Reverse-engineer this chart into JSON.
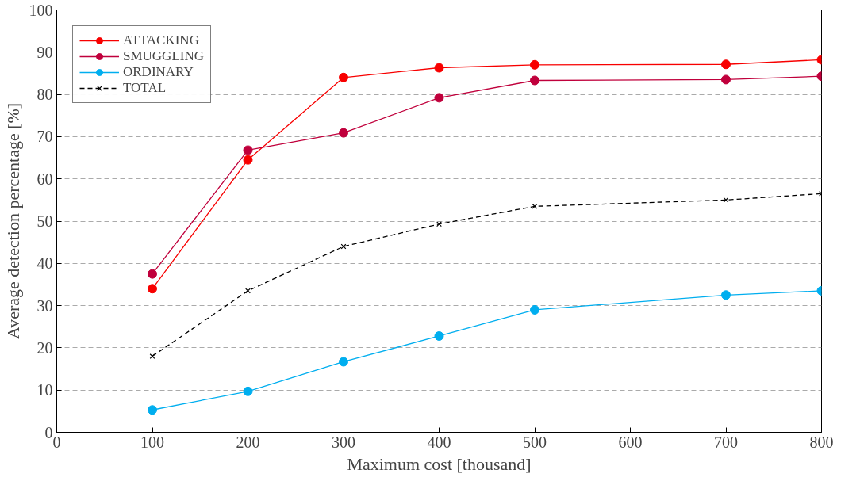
{
  "chart_data": {
    "type": "line",
    "xlabel": "Maximum cost [thousand]",
    "ylabel": "Average detection percentage [%]",
    "x": [
      100,
      200,
      300,
      400,
      500,
      700,
      800
    ],
    "series": [
      {
        "name": "ATTACKING",
        "color": "#f80000",
        "marker": "circle",
        "line_style": "solid",
        "values": [
          34,
          64.5,
          84,
          86.3,
          87,
          87.1,
          88.2
        ]
      },
      {
        "name": "SMUGGLING",
        "color": "#c0003c",
        "marker": "circle",
        "line_style": "solid",
        "values": [
          37.5,
          66.8,
          70.9,
          79.2,
          83.3,
          83.5,
          84.3
        ]
      },
      {
        "name": "ORDINARY",
        "color": "#00aeef",
        "marker": "circle",
        "line_style": "solid",
        "values": [
          5.3,
          9.7,
          16.7,
          22.8,
          29,
          32.5,
          33.5
        ]
      },
      {
        "name": "TOTAL",
        "color": "#000000",
        "marker": "cross",
        "line_style": "dashed",
        "values": [
          18,
          33.5,
          44,
          49.3,
          53.5,
          55,
          56.5
        ]
      }
    ],
    "xlim": [
      0,
      800
    ],
    "ylim": [
      0,
      100
    ],
    "xticks": [
      0,
      100,
      200,
      300,
      400,
      500,
      600,
      700,
      800
    ],
    "yticks": [
      0,
      10,
      20,
      30,
      40,
      50,
      60,
      70,
      80,
      90,
      100
    ],
    "grid": "y",
    "legend": "top left"
  }
}
